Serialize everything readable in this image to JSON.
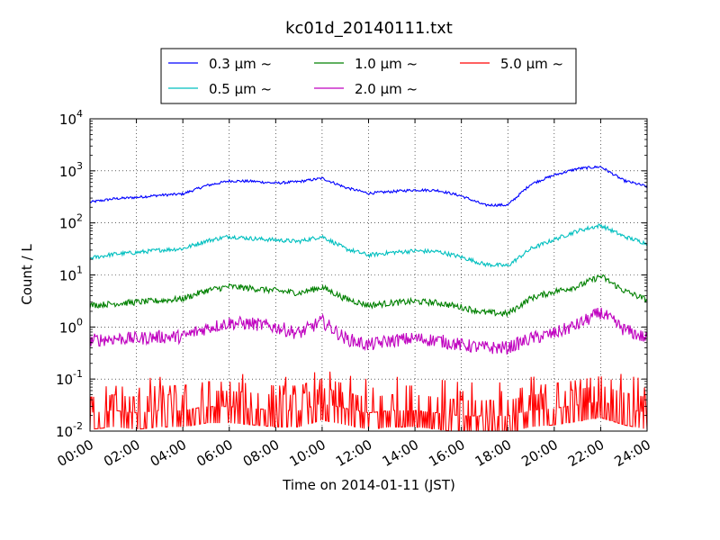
{
  "chart_data": {
    "type": "line",
    "title": "kc01d_20140111.txt",
    "xlabel": "Time on 2014-01-11 (JST)",
    "ylabel": "Count / L",
    "y_scale": "log",
    "ylim": [
      0.01,
      10000
    ],
    "xlim": [
      "00:00",
      "24:00"
    ],
    "x_ticks": [
      "00:00",
      "02:00",
      "04:00",
      "06:00",
      "08:00",
      "10:00",
      "12:00",
      "14:00",
      "16:00",
      "18:00",
      "20:00",
      "22:00",
      "24:00"
    ],
    "y_ticks": [
      {
        "base": "10",
        "exp": "-2"
      },
      {
        "base": "10",
        "exp": "-1"
      },
      {
        "base": "10",
        "exp": "0"
      },
      {
        "base": "10",
        "exp": "1"
      },
      {
        "base": "10",
        "exp": "2"
      },
      {
        "base": "10",
        "exp": "3"
      },
      {
        "base": "10",
        "exp": "4"
      }
    ],
    "grid": true,
    "legend_placement": "top-center",
    "x": [
      "00:00",
      "01:00",
      "02:00",
      "03:00",
      "04:00",
      "05:00",
      "06:00",
      "07:00",
      "08:00",
      "09:00",
      "10:00",
      "11:00",
      "12:00",
      "13:00",
      "14:00",
      "15:00",
      "16:00",
      "17:00",
      "18:00",
      "19:00",
      "20:00",
      "21:00",
      "22:00",
      "23:00",
      "24:00"
    ],
    "series": [
      {
        "name": "0.3 μm ~",
        "color": "#0000ff",
        "values": [
          250,
          290,
          310,
          340,
          360,
          520,
          640,
          630,
          580,
          620,
          720,
          480,
          370,
          400,
          430,
          420,
          330,
          220,
          220,
          560,
          830,
          1100,
          1200,
          650,
          500
        ]
      },
      {
        "name": "0.5 μm ~",
        "color": "#00bfbf",
        "values": [
          21,
          25,
          27,
          30,
          32,
          45,
          55,
          50,
          47,
          44,
          55,
          32,
          24,
          27,
          29,
          28,
          22,
          16,
          15,
          32,
          48,
          70,
          90,
          55,
          40
        ]
      },
      {
        "name": "1.0 μm ~",
        "color": "#008000",
        "values": [
          2.6,
          2.8,
          3.0,
          3.2,
          3.5,
          5,
          6,
          5.5,
          5,
          4.5,
          5.8,
          3.5,
          2.6,
          2.9,
          3.1,
          2.9,
          2.4,
          1.9,
          1.8,
          3.6,
          4.8,
          6,
          9.5,
          5,
          3.3
        ]
      },
      {
        "name": "2.0 μm ~",
        "color": "#bf00bf",
        "values": [
          0.55,
          0.6,
          0.6,
          0.65,
          0.65,
          0.95,
          1.2,
          1.15,
          1.0,
          0.75,
          1.3,
          0.6,
          0.45,
          0.55,
          0.6,
          0.55,
          0.45,
          0.4,
          0.4,
          0.6,
          0.75,
          1.1,
          1.9,
          0.9,
          0.6
        ]
      },
      {
        "name": "5.0 μm ~",
        "color": "#ff0000",
        "values": [
          0.025,
          0.03,
          0.025,
          0.03,
          0.03,
          0.04,
          0.04,
          0.035,
          0.03,
          0.03,
          0.05,
          0.035,
          0.025,
          0.03,
          0.03,
          0.025,
          0.02,
          0.02,
          0.02,
          0.03,
          0.035,
          0.045,
          0.06,
          0.035,
          0.025
        ]
      }
    ]
  }
}
